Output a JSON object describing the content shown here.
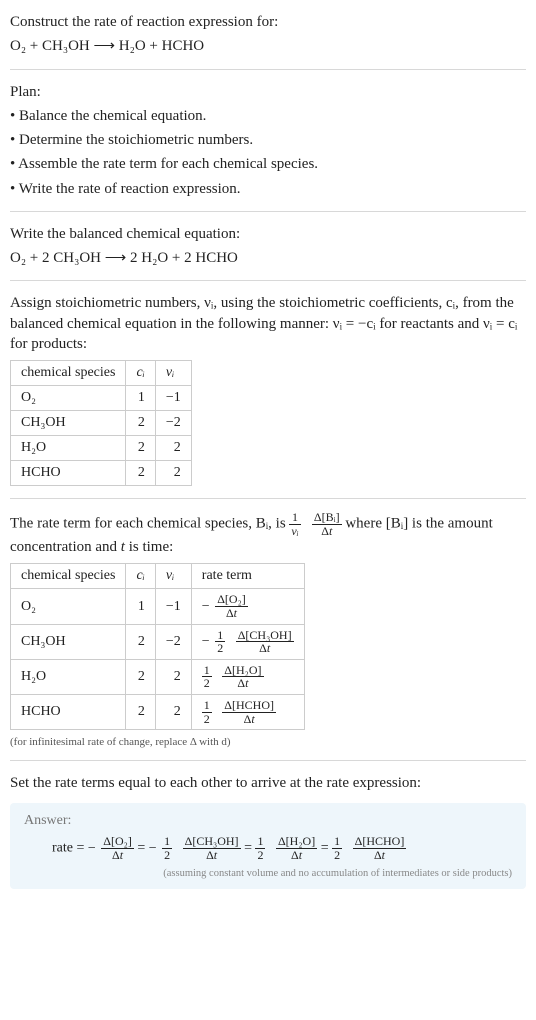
{
  "intro": {
    "line1": "Construct the rate of reaction expression for:",
    "unbalanced": "O₂ + CH₃OH ⟶ H₂O + HCHO"
  },
  "plan": {
    "header": "Plan:",
    "items": [
      "• Balance the chemical equation.",
      "• Determine the stoichiometric numbers.",
      "• Assemble the rate term for each chemical species.",
      "• Write the rate of reaction expression."
    ]
  },
  "balanced": {
    "header": "Write the balanced chemical equation:",
    "equation": "O₂ + 2 CH₃OH ⟶ 2 H₂O + 2 HCHO"
  },
  "stoich": {
    "text": "Assign stoichiometric numbers, νᵢ, using the stoichiometric coefficients, cᵢ, from the balanced chemical equation in the following manner: νᵢ = −cᵢ for reactants and νᵢ = cᵢ for products:",
    "headers": [
      "chemical species",
      "cᵢ",
      "νᵢ"
    ],
    "rows": [
      [
        "O₂",
        "1",
        "−1"
      ],
      [
        "CH₃OH",
        "2",
        "−2"
      ],
      [
        "H₂O",
        "2",
        "2"
      ],
      [
        "HCHO",
        "2",
        "2"
      ]
    ]
  },
  "rateterm": {
    "pre": "The rate term for each chemical species, Bᵢ, is ",
    "mid": " where [Bᵢ] is the amount concentration and ",
    "tvar": "t",
    "post": " is time:",
    "coef_num": "1",
    "coef_den": "νᵢ",
    "dconc_num": "Δ[Bᵢ]",
    "dconc_den": "Δt",
    "headers": [
      "chemical species",
      "cᵢ",
      "νᵢ",
      "rate term"
    ],
    "rows": [
      {
        "sp": "O₂",
        "c": "1",
        "v": "−1",
        "neg": "−",
        "coef_num": "",
        "coef_den": "",
        "dnum": "Δ[O₂]",
        "dden": "Δt"
      },
      {
        "sp": "CH₃OH",
        "c": "2",
        "v": "−2",
        "neg": "−",
        "coef_num": "1",
        "coef_den": "2",
        "dnum": "Δ[CH₃OH]",
        "dden": "Δt"
      },
      {
        "sp": "H₂O",
        "c": "2",
        "v": "2",
        "neg": "",
        "coef_num": "1",
        "coef_den": "2",
        "dnum": "Δ[H₂O]",
        "dden": "Δt"
      },
      {
        "sp": "HCHO",
        "c": "2",
        "v": "2",
        "neg": "",
        "coef_num": "1",
        "coef_den": "2",
        "dnum": "Δ[HCHO]",
        "dden": "Δt"
      }
    ],
    "note": "(for infinitesimal rate of change, replace Δ with d)"
  },
  "final": {
    "header": "Set the rate terms equal to each other to arrive at the rate expression:"
  },
  "answer": {
    "label": "Answer:",
    "rate_lhs": "rate = ",
    "terms": [
      {
        "neg": "−",
        "coef_num": "",
        "coef_den": "",
        "dnum": "Δ[O₂]",
        "dden": "Δt"
      },
      {
        "neg": "−",
        "coef_num": "1",
        "coef_den": "2",
        "dnum": "Δ[CH₃OH]",
        "dden": "Δt"
      },
      {
        "neg": "",
        "coef_num": "1",
        "coef_den": "2",
        "dnum": "Δ[H₂O]",
        "dden": "Δt"
      },
      {
        "neg": "",
        "coef_num": "1",
        "coef_den": "2",
        "dnum": "Δ[HCHO]",
        "dden": "Δt"
      }
    ],
    "eq": " = ",
    "note": "(assuming constant volume and no accumulation of intermediates or side products)"
  }
}
